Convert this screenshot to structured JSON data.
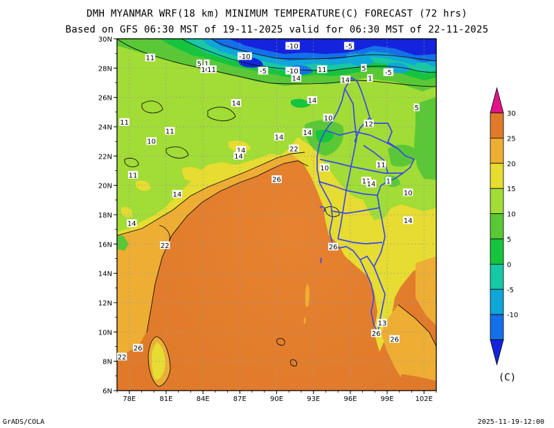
{
  "header": {
    "title": "DMH MYANMAR WRF(18 km) MINIMUM TEMPERATURE(C) FORECAST (72 hrs)",
    "subtitle": "Based on GFS 06:30 MST of 19-11-2025 valid for 06:30 MST of 22-11-2025"
  },
  "axes": {
    "lon_ticks": [
      "78E",
      "81E",
      "84E",
      "87E",
      "90E",
      "93E",
      "96E",
      "99E",
      "102E"
    ],
    "lat_ticks": [
      "30N",
      "28N",
      "26N",
      "24N",
      "22N",
      "20N",
      "18N",
      "16N",
      "14N",
      "12N",
      "10N",
      "8N",
      "6N"
    ],
    "lon_range": [
      77,
      103
    ],
    "lat_range": [
      6,
      30
    ]
  },
  "legend": {
    "unit": "(C)",
    "labels": [
      "30",
      "25",
      "20",
      "15",
      "10",
      "5",
      "0",
      "-5",
      "-10"
    ],
    "colors": [
      "#e21488",
      "#e07a2a",
      "#eeae34",
      "#e6dc32",
      "#a2dc36",
      "#5ac836",
      "#16c43e",
      "#16c8a4",
      "#10a6d8",
      "#1470e8",
      "#1424dc"
    ]
  },
  "contour_labels": [
    {
      "text": "11",
      "lon": 79.7,
      "lat": 28.7
    },
    {
      "text": "5",
      "lon": 83.7,
      "lat": 28.3
    },
    {
      "text": "1",
      "lon": 84.3,
      "lat": 28.3
    },
    {
      "text": "10",
      "lon": 84.2,
      "lat": 27.9
    },
    {
      "text": "11",
      "lon": 84.7,
      "lat": 27.9
    },
    {
      "text": "-10",
      "lon": 87.4,
      "lat": 28.8
    },
    {
      "text": "-5",
      "lon": 88.9,
      "lat": 27.8
    },
    {
      "text": "-10",
      "lon": 91.3,
      "lat": 29.5
    },
    {
      "text": "-10",
      "lon": 91.3,
      "lat": 27.8
    },
    {
      "text": "14",
      "lon": 91.6,
      "lat": 27.3
    },
    {
      "text": "11",
      "lon": 93.7,
      "lat": 27.9
    },
    {
      "text": "-5",
      "lon": 95.9,
      "lat": 29.5
    },
    {
      "text": "5",
      "lon": 97.1,
      "lat": 28.0
    },
    {
      "text": "-5",
      "lon": 99.1,
      "lat": 27.7
    },
    {
      "text": "1",
      "lon": 97.6,
      "lat": 27.3
    },
    {
      "text": "14",
      "lon": 95.6,
      "lat": 27.2
    },
    {
      "text": "14",
      "lon": 86.7,
      "lat": 25.6
    },
    {
      "text": "14",
      "lon": 92.9,
      "lat": 25.8
    },
    {
      "text": "10",
      "lon": 94.2,
      "lat": 24.6
    },
    {
      "text": "5",
      "lon": 101.4,
      "lat": 25.3
    },
    {
      "text": "11",
      "lon": 77.6,
      "lat": 24.3
    },
    {
      "text": "11",
      "lon": 81.3,
      "lat": 23.7
    },
    {
      "text": "10",
      "lon": 79.8,
      "lat": 23.0
    },
    {
      "text": "14",
      "lon": 92.5,
      "lat": 23.6
    },
    {
      "text": "14",
      "lon": 90.2,
      "lat": 23.3
    },
    {
      "text": "22",
      "lon": 91.4,
      "lat": 22.5
    },
    {
      "text": "12",
      "lon": 97.5,
      "lat": 24.2
    },
    {
      "text": "14",
      "lon": 87.1,
      "lat": 22.4
    },
    {
      "text": "14",
      "lon": 86.9,
      "lat": 22.0
    },
    {
      "text": "10",
      "lon": 93.9,
      "lat": 21.2
    },
    {
      "text": "11",
      "lon": 98.5,
      "lat": 21.4
    },
    {
      "text": "11",
      "lon": 97.3,
      "lat": 20.3
    },
    {
      "text": "14",
      "lon": 97.7,
      "lat": 20.1
    },
    {
      "text": "1",
      "lon": 99.1,
      "lat": 20.3
    },
    {
      "text": "11",
      "lon": 78.3,
      "lat": 20.7
    },
    {
      "text": "26",
      "lon": 90.0,
      "lat": 20.4
    },
    {
      "text": "14",
      "lon": 81.9,
      "lat": 19.4
    },
    {
      "text": "10",
      "lon": 100.7,
      "lat": 19.5
    },
    {
      "text": "14",
      "lon": 100.7,
      "lat": 17.6
    },
    {
      "text": "14",
      "lon": 78.2,
      "lat": 17.4
    },
    {
      "text": "22",
      "lon": 80.9,
      "lat": 15.9
    },
    {
      "text": "26",
      "lon": 94.6,
      "lat": 15.8
    },
    {
      "text": "13",
      "lon": 98.6,
      "lat": 10.6
    },
    {
      "text": "26",
      "lon": 98.1,
      "lat": 9.9
    },
    {
      "text": "26",
      "lon": 99.6,
      "lat": 9.5
    },
    {
      "text": "26",
      "lon": 78.7,
      "lat": 8.9
    },
    {
      "text": "22",
      "lon": 77.4,
      "lat": 8.3
    }
  ],
  "footer": {
    "left": "GrADS/COLA",
    "right": "2025-11-19-12:00"
  }
}
